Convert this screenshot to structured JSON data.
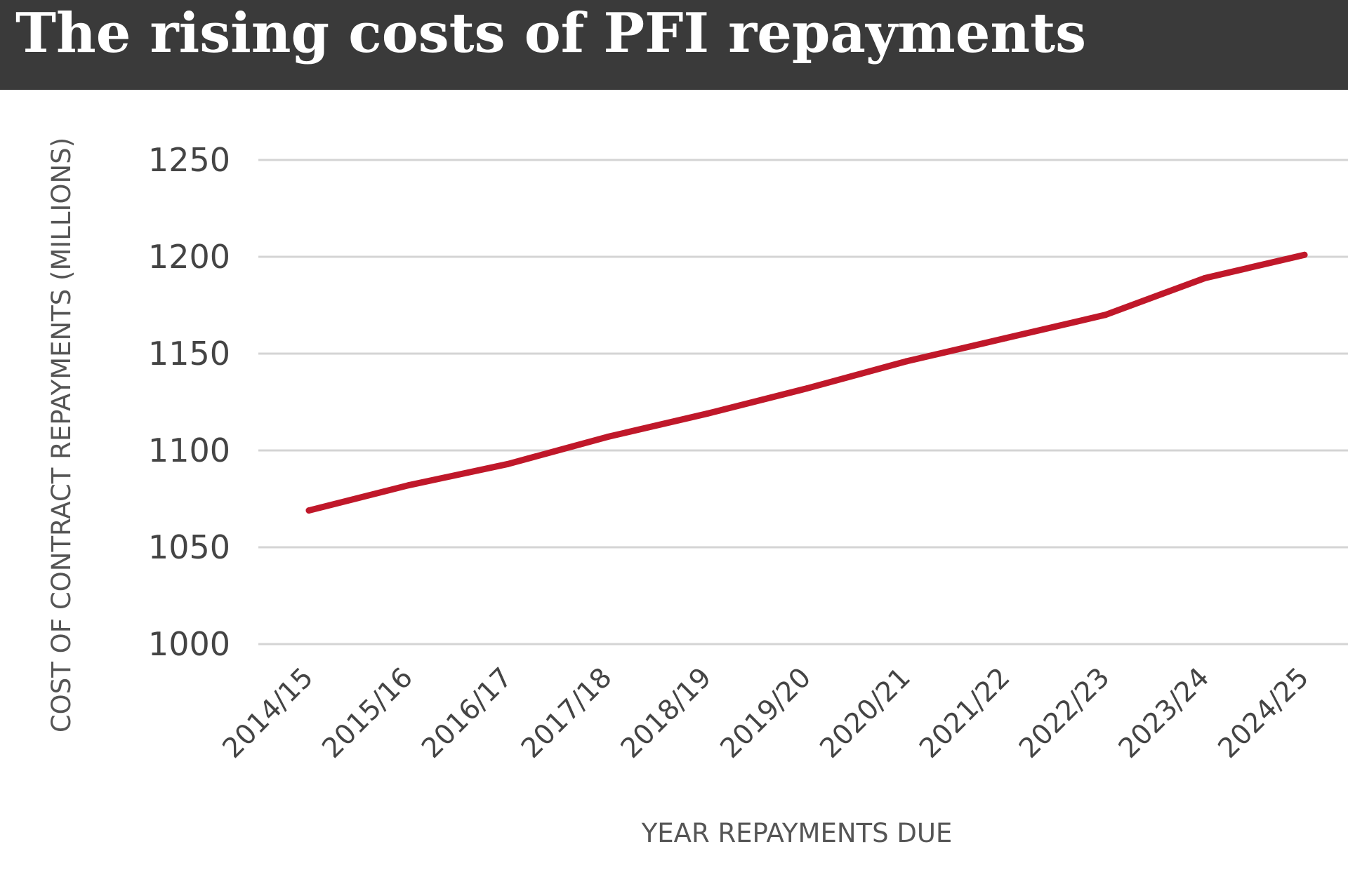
{
  "header": {
    "title": "The rising costs of PFI repayments",
    "background": "#3a3a3a"
  },
  "chart_data": {
    "type": "line",
    "title": "The rising costs of PFI repayments",
    "xlabel": "YEAR REPAYMENTS DUE",
    "ylabel": "COST OF CONTRACT REPAYMENTS (MILLIONS)",
    "categories": [
      "2014/15",
      "2015/16",
      "2016/17",
      "2017/18",
      "2018/19",
      "2019/20",
      "2020/21",
      "2021/22",
      "2022/23",
      "2023/24",
      "2024/25"
    ],
    "series": [
      {
        "values": [
          1069,
          1082,
          1093,
          1107,
          1119,
          1132,
          1146,
          1158,
          1170,
          1189,
          1201
        ],
        "color": "#c0182a"
      }
    ],
    "ylim": [
      1000,
      1250
    ],
    "yticks": [
      1000,
      1050,
      1100,
      1150,
      1200,
      1250
    ],
    "grid": true,
    "gridColor": "#d4d4d4",
    "legend": "none"
  }
}
